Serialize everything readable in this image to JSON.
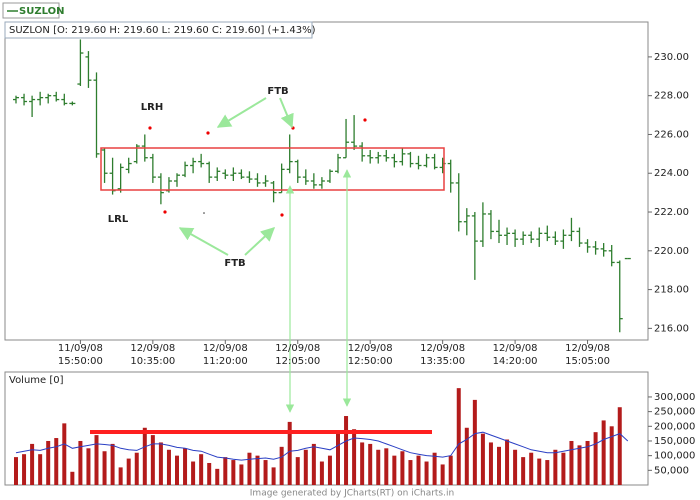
{
  "chart_data": [
    {
      "type": "ohlc",
      "subtitle": "SUZLON [O: 219.60  H: 219.60  L: 219.60  C: 219.60] (+1.43%)",
      "annotations": [
        "LRH",
        "LRL",
        "FTB",
        "FTB"
      ],
      "categories": [
        null,
        null,
        null,
        null,
        null,
        null,
        null,
        null,
        "11/09/08\n15:50:00",
        null,
        null,
        null,
        null,
        null,
        null,
        null,
        null,
        "12/09/08\n10:35:00",
        null,
        null,
        null,
        null,
        null,
        null,
        null,
        null,
        "12/09/08\n11:20:00",
        null,
        null,
        null,
        null,
        null,
        null,
        null,
        null,
        "12/09/08\n12:05:00",
        null,
        null,
        null,
        null,
        null,
        null,
        null,
        null,
        "12/09/08\n12:50:00",
        null,
        null,
        null,
        null,
        null,
        null,
        null,
        null,
        "12/09/08\n13:35:00",
        null,
        null,
        null,
        null,
        null,
        null,
        null,
        null,
        "12/09/08\n14:20:00",
        null,
        null,
        null,
        null,
        null,
        null,
        null,
        null,
        "12/09/08\n15:05:00",
        null,
        null,
        null,
        null,
        null
      ],
      "series": [
        {
          "name": "SUZLON",
          "color": "#2e7d2e",
          "open": [
            227.8,
            227.9,
            227.7,
            227.8,
            227.9,
            228.0,
            227.8,
            227.6,
            228.6,
            230.0,
            228.8,
            225.2,
            224.0,
            223.2,
            224.2,
            224.6,
            225.4,
            224.8,
            223.8,
            223.1,
            223.6,
            223.9,
            224.4,
            224.6,
            224.5,
            223.8,
            224.0,
            223.9,
            224.0,
            223.8,
            223.7,
            223.5,
            223.5,
            223.0,
            224.2,
            224.6,
            223.8,
            223.6,
            223.4,
            223.6,
            224.1,
            224.8,
            225.6,
            225.4,
            224.9,
            224.8,
            224.9,
            224.8,
            224.6,
            225.0,
            224.5,
            224.4,
            224.8,
            224.3,
            224.5,
            223.5,
            221.5,
            221.8,
            220.5,
            221.9,
            221.0,
            220.8,
            220.9,
            220.6,
            220.8,
            220.6,
            220.9,
            220.7,
            220.5,
            220.8,
            221.0,
            220.4,
            220.2,
            220.1,
            220.0,
            219.4,
            219.6
          ],
          "high": [
            228.0,
            228.1,
            228.0,
            228.2,
            228.1,
            228.2,
            228.1,
            227.7,
            230.9,
            230.3,
            229.2,
            225.3,
            224.8,
            224.5,
            224.8,
            225.5,
            226.0,
            225.0,
            224.0,
            223.8,
            224.0,
            224.6,
            224.8,
            225.0,
            224.6,
            224.3,
            224.2,
            224.3,
            224.2,
            224.1,
            224.0,
            223.9,
            223.6,
            224.5,
            226.0,
            224.7,
            224.2,
            224.0,
            223.8,
            224.2,
            225.0,
            226.8,
            227.0,
            225.6,
            225.2,
            225.1,
            225.2,
            225.0,
            225.3,
            225.1,
            224.9,
            225.0,
            225.0,
            224.8,
            224.7,
            224.0,
            222.2,
            222.0,
            222.5,
            222.1,
            221.6,
            221.2,
            221.1,
            221.0,
            221.0,
            221.2,
            221.3,
            221.0,
            221.1,
            221.7,
            221.2,
            220.6,
            220.5,
            220.4,
            220.3,
            219.5,
            219.6
          ],
          "low": [
            227.6,
            227.5,
            226.9,
            227.5,
            227.6,
            227.7,
            227.5,
            227.5,
            228.5,
            228.4,
            224.8,
            223.5,
            222.9,
            223.0,
            224.0,
            224.5,
            224.6,
            223.5,
            222.4,
            223.0,
            223.3,
            223.8,
            224.0,
            224.3,
            223.5,
            223.6,
            223.7,
            223.6,
            223.7,
            223.5,
            223.3,
            223.3,
            222.5,
            223.0,
            224.0,
            223.5,
            223.4,
            223.2,
            223.2,
            223.5,
            224.0,
            224.8,
            225.2,
            224.6,
            224.5,
            224.5,
            224.6,
            224.3,
            224.4,
            224.3,
            224.2,
            224.3,
            224.2,
            224.0,
            223.0,
            221.0,
            220.8,
            218.5,
            220.2,
            220.6,
            220.4,
            220.3,
            220.2,
            220.3,
            220.4,
            220.2,
            220.5,
            220.3,
            220.1,
            220.5,
            220.2,
            219.9,
            219.8,
            219.7,
            219.2,
            215.8,
            219.6
          ],
          "close": [
            227.9,
            227.7,
            227.8,
            227.9,
            228.0,
            227.8,
            227.6,
            227.6,
            230.2,
            228.8,
            225.0,
            224.0,
            223.1,
            224.3,
            224.5,
            225.4,
            224.8,
            223.8,
            223.0,
            223.6,
            223.9,
            224.4,
            224.6,
            224.5,
            223.8,
            224.1,
            223.9,
            224.0,
            223.8,
            223.7,
            223.5,
            223.6,
            223.0,
            224.2,
            224.6,
            223.8,
            223.6,
            223.4,
            223.6,
            224.1,
            224.8,
            225.6,
            225.4,
            224.9,
            224.8,
            224.9,
            224.8,
            224.6,
            225.0,
            224.5,
            224.4,
            224.8,
            224.3,
            224.5,
            223.5,
            221.5,
            221.8,
            220.5,
            221.9,
            221.0,
            220.8,
            220.9,
            220.6,
            220.8,
            220.6,
            220.9,
            220.7,
            220.5,
            220.8,
            221.0,
            220.4,
            220.2,
            220.1,
            220.0,
            219.4,
            216.5,
            219.6
          ]
        }
      ],
      "ylim": [
        215.4,
        231.8
      ],
      "yticks": [
        {
          "value": 216,
          "label": "216.00"
        },
        {
          "value": 218,
          "label": "218.00"
        },
        {
          "value": 220,
          "label": "220.00"
        },
        {
          "value": 222,
          "label": "222.00"
        },
        {
          "value": 224,
          "label": "224.00"
        },
        {
          "value": 226,
          "label": "226.00"
        },
        {
          "value": 228,
          "label": "228.00"
        },
        {
          "value": 230,
          "label": "230.00"
        }
      ]
    },
    {
      "type": "bar",
      "title": "Volume [0]",
      "color": "#b31b1b",
      "values": [
        95000,
        105000,
        140000,
        105000,
        150000,
        160000,
        210000,
        45000,
        150000,
        125000,
        170000,
        115000,
        140000,
        60000,
        90000,
        110000,
        195000,
        170000,
        145000,
        120000,
        100000,
        125000,
        80000,
        105000,
        75000,
        55000,
        95000,
        85000,
        70000,
        110000,
        100000,
        85000,
        60000,
        130000,
        215000,
        95000,
        120000,
        140000,
        80000,
        100000,
        175000,
        235000,
        190000,
        145000,
        140000,
        120000,
        125000,
        100000,
        115000,
        85000,
        100000,
        80000,
        110000,
        70000,
        100000,
        330000,
        195000,
        290000,
        175000,
        145000,
        130000,
        155000,
        120000,
        95000,
        110000,
        90000,
        85000,
        120000,
        110000,
        150000,
        135000,
        150000,
        180000,
        220000,
        200000,
        265000,
        0
      ],
      "average": {
        "color": "#2a3fc4",
        "values": [
          110000,
          115000,
          120000,
          118000,
          125000,
          130000,
          140000,
          125000,
          130000,
          135000,
          140000,
          138000,
          135000,
          125000,
          120000,
          118000,
          130000,
          140000,
          140000,
          135000,
          128000,
          125000,
          118000,
          115000,
          105000,
          95000,
          92000,
          88000,
          85000,
          88000,
          90000,
          92000,
          88000,
          95000,
          115000,
          118000,
          125000,
          130000,
          125000,
          120000,
          135000,
          150000,
          160000,
          158000,
          155000,
          150000,
          140000,
          130000,
          120000,
          110000,
          105000,
          100000,
          98000,
          95000,
          100000,
          140000,
          155000,
          175000,
          180000,
          170000,
          160000,
          150000,
          140000,
          130000,
          120000,
          115000,
          110000,
          110000,
          115000,
          120000,
          125000,
          130000,
          140000,
          155000,
          165000,
          175000,
          150000
        ]
      },
      "ylim": [
        0,
        385000
      ],
      "yticks": [
        {
          "value": 50000,
          "label": "50,000"
        },
        {
          "value": 100000,
          "label": "100,000"
        },
        {
          "value": 150000,
          "label": "150,000"
        },
        {
          "value": 200000,
          "label": "200,000"
        },
        {
          "value": 250000,
          "label": "250,000"
        },
        {
          "value": 300000,
          "label": "300,000"
        }
      ]
    }
  ],
  "footer": "Image generated by JCharts(RT) on iCharts.in"
}
